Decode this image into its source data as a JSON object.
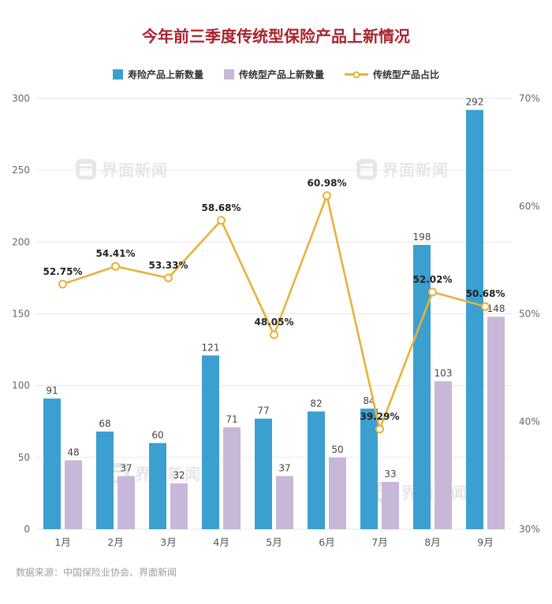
{
  "title": "今年前三季度传统型保险产品上新情况",
  "source": "数据来源：中国保险业协会、界面新闻",
  "watermark": {
    "text": "界面新闻"
  },
  "colors": {
    "life_bar": "#3b9fd0",
    "traditional_bar": "#c7b8d9",
    "ratio_line": "#e5b33c",
    "title": "#a8232d",
    "grid": "#e6e6e6"
  },
  "legend": [
    {
      "label": "寿险产品上新数量",
      "type": "bar",
      "color": "#3b9fd0"
    },
    {
      "label": "传统型产品上新数量",
      "type": "bar",
      "color": "#c7b8d9"
    },
    {
      "label": "传统型产品占比",
      "type": "line",
      "color": "#e5b33c"
    }
  ],
  "chart_data": {
    "type": "bar",
    "subtype": "grouped-bars-with-line",
    "title": "今年前三季度传统型保险产品上新情况",
    "categories": [
      "1月",
      "2月",
      "3月",
      "4月",
      "5月",
      "6月",
      "7月",
      "8月",
      "9月"
    ],
    "series": [
      {
        "name": "寿险产品上新数量",
        "type": "bar",
        "axis": "left",
        "color": "#3b9fd0",
        "values": [
          91,
          68,
          60,
          121,
          77,
          82,
          84,
          198,
          292
        ]
      },
      {
        "name": "传统型产品上新数量",
        "type": "bar",
        "axis": "left",
        "color": "#c7b8d9",
        "values": [
          48,
          37,
          32,
          71,
          37,
          50,
          33,
          103,
          148
        ]
      },
      {
        "name": "传统型产品占比",
        "type": "line",
        "axis": "right",
        "color": "#e5b33c",
        "values": [
          52.75,
          54.41,
          53.33,
          58.68,
          48.05,
          60.98,
          39.29,
          52.02,
          50.68
        ],
        "labels": [
          "52.75%",
          "54.41%",
          "53.33%",
          "58.68%",
          "48.05%",
          "60.98%",
          "39.29%",
          "52.02%",
          "50.68%"
        ]
      }
    ],
    "left_axis": {
      "min": 0,
      "max": 300,
      "step": 50,
      "ticks": [
        "0",
        "50",
        "100",
        "150",
        "200",
        "250",
        "300"
      ]
    },
    "right_axis": {
      "min": 30,
      "max": 70,
      "step": 10,
      "ticks": [
        "30%",
        "40%",
        "50%",
        "60%",
        "70%"
      ]
    },
    "grid": true,
    "legend_position": "top"
  }
}
